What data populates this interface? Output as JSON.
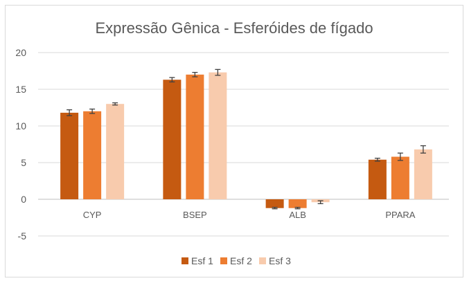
{
  "chart_data": {
    "type": "bar",
    "title": "Expressão Gênica - Esferóides de fígado",
    "categories": [
      "CYP",
      "BSEP",
      "ALB",
      "PPARA"
    ],
    "series": [
      {
        "name": "Esf 1",
        "color": "#C55A11",
        "values": [
          11.8,
          16.3,
          -1.2,
          5.4
        ],
        "errors": [
          0.4,
          0.3,
          0.1,
          0.2
        ]
      },
      {
        "name": "Esf 2",
        "color": "#ED7D31",
        "values": [
          12.0,
          17.0,
          -1.2,
          5.8
        ],
        "errors": [
          0.3,
          0.3,
          0.1,
          0.5
        ]
      },
      {
        "name": "Esf 3",
        "color": "#F8CBAD",
        "values": [
          13.0,
          17.3,
          -0.4,
          6.8
        ],
        "errors": [
          0.15,
          0.4,
          0.2,
          0.5
        ]
      }
    ],
    "yticks": [
      "20",
      "15",
      "10",
      "5",
      "0",
      "-5"
    ],
    "ylim": [
      -5,
      20
    ],
    "grid": true,
    "legend_position": "bottom",
    "xlabel": "",
    "ylabel": ""
  }
}
